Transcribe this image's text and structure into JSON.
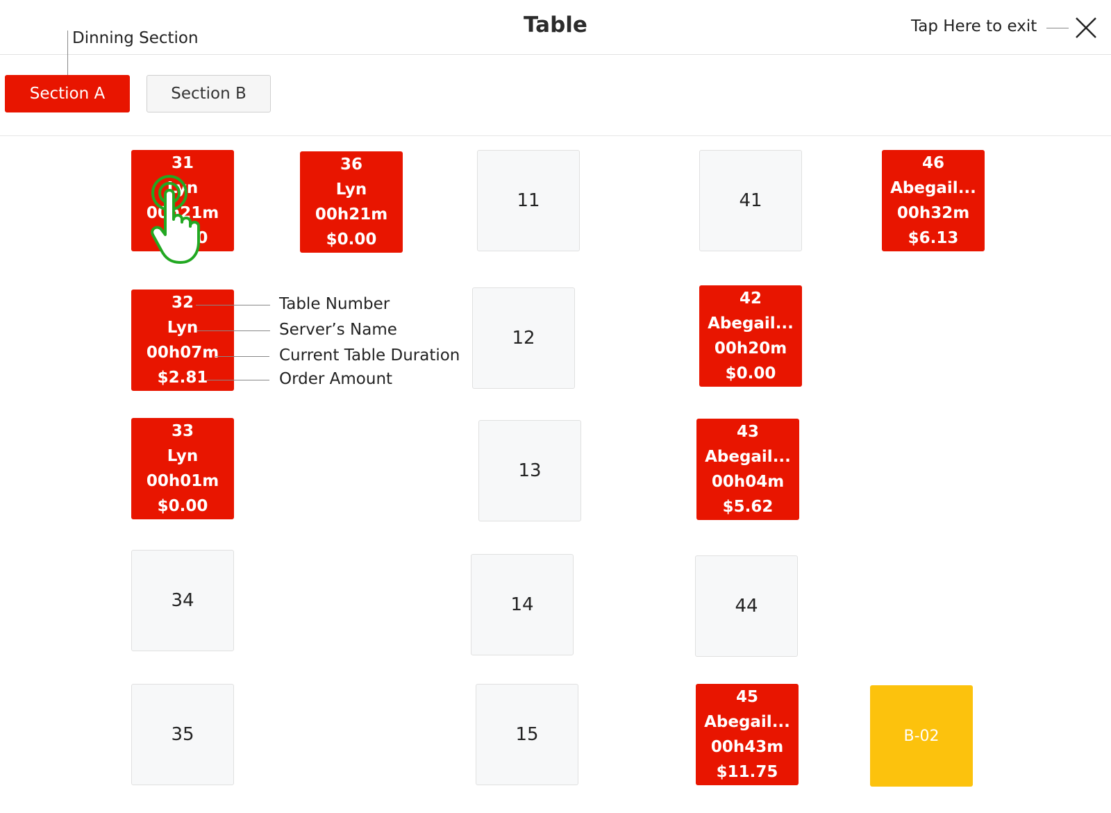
{
  "header": {
    "title": "Table",
    "exit_text": "Tap Here to exit"
  },
  "annotations": {
    "dining_section": "Dinning Section",
    "table_number": "Table Number",
    "server_name": "Server’s Name",
    "duration": "Current Table Duration",
    "order_amount": "Order Amount"
  },
  "sections": [
    {
      "label": "Section A",
      "active": true
    },
    {
      "label": "Section B",
      "active": false
    }
  ],
  "tables": {
    "t31": {
      "number": "31",
      "server": "Lyn",
      "duration": "00h21m",
      "amount": "$0.00"
    },
    "t36": {
      "number": "36",
      "server": "Lyn",
      "duration": "00h21m",
      "amount": "$0.00"
    },
    "t11": {
      "number": "11"
    },
    "t41": {
      "number": "41"
    },
    "t46": {
      "number": "46",
      "server": "Abegail...",
      "duration": "00h32m",
      "amount": "$6.13"
    },
    "t32": {
      "number": "32",
      "server": "Lyn",
      "duration": "00h07m",
      "amount": "$2.81"
    },
    "t12": {
      "number": "12"
    },
    "t42": {
      "number": "42",
      "server": "Abegail...",
      "duration": "00h20m",
      "amount": "$0.00"
    },
    "t33": {
      "number": "33",
      "server": "Lyn",
      "duration": "00h01m",
      "amount": "$0.00"
    },
    "t13": {
      "number": "13"
    },
    "t43": {
      "number": "43",
      "server": "Abegail...",
      "duration": "00h04m",
      "amount": "$5.62"
    },
    "t34": {
      "number": "34"
    },
    "t14": {
      "number": "14"
    },
    "t44": {
      "number": "44"
    },
    "t35": {
      "number": "35"
    },
    "t15": {
      "number": "15"
    },
    "t45": {
      "number": "45",
      "server": "Abegail...",
      "duration": "00h43m",
      "amount": "$11.75"
    },
    "tb02": {
      "number": "B-02"
    }
  },
  "colors": {
    "occupied": "#e81500",
    "free": "#f7f8f9",
    "reserved": "#fcc20d",
    "touch_indicator": "#22a822"
  },
  "icons": {
    "close": "close-icon",
    "touch": "hand-pointer-icon"
  }
}
